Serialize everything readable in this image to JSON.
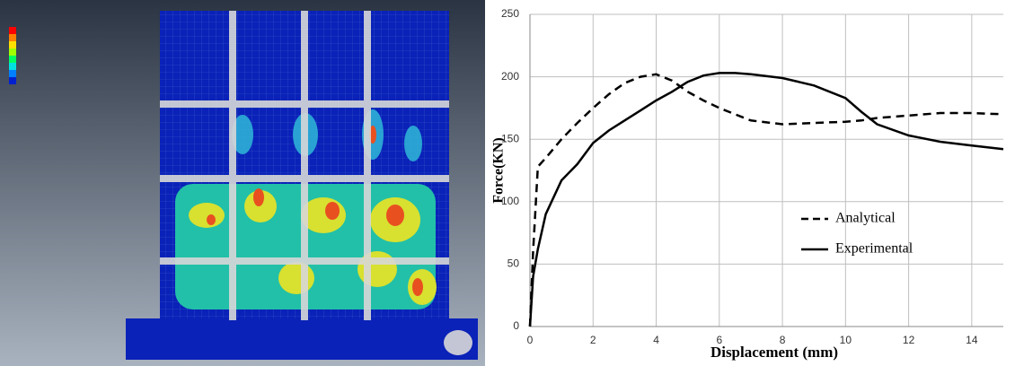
{
  "chart_data": {
    "type": "line",
    "x_label": "Displacement (mm)",
    "y_label": "Force(KN)",
    "x": [
      0,
      0.1,
      0.25,
      0.5,
      1,
      1.5,
      2,
      2.5,
      3,
      3.5,
      4,
      4.5,
      5,
      5.5,
      6,
      6.5,
      7,
      8,
      9,
      10,
      10.5,
      11,
      12,
      13,
      14,
      15
    ],
    "series": [
      {
        "name": "Analytical",
        "color": "#000000",
        "line_style": "dashed",
        "values": [
          0,
          60,
          128,
          135,
          150,
          163,
          175,
          186,
          195,
          200,
          202,
          197,
          188,
          181,
          175,
          170,
          165,
          162,
          163,
          164,
          165,
          167,
          169,
          171,
          171,
          170
        ]
      },
      {
        "name": "Experimental",
        "color": "#000000",
        "line_style": "solid",
        "values": [
          0,
          40,
          62,
          90,
          117,
          130,
          147,
          157,
          165,
          173,
          181,
          188,
          196,
          201,
          203,
          203,
          202,
          199,
          193,
          183,
          172,
          162,
          153,
          148,
          145,
          142
        ]
      }
    ],
    "xlim": [
      0,
      15
    ],
    "xticks": [
      0,
      2,
      4,
      6,
      8,
      10,
      12,
      14
    ],
    "ylim": [
      0,
      250
    ],
    "yticks": [
      0,
      50,
      100,
      150,
      200,
      250
    ],
    "grid": true,
    "legend_position": "center right"
  }
}
